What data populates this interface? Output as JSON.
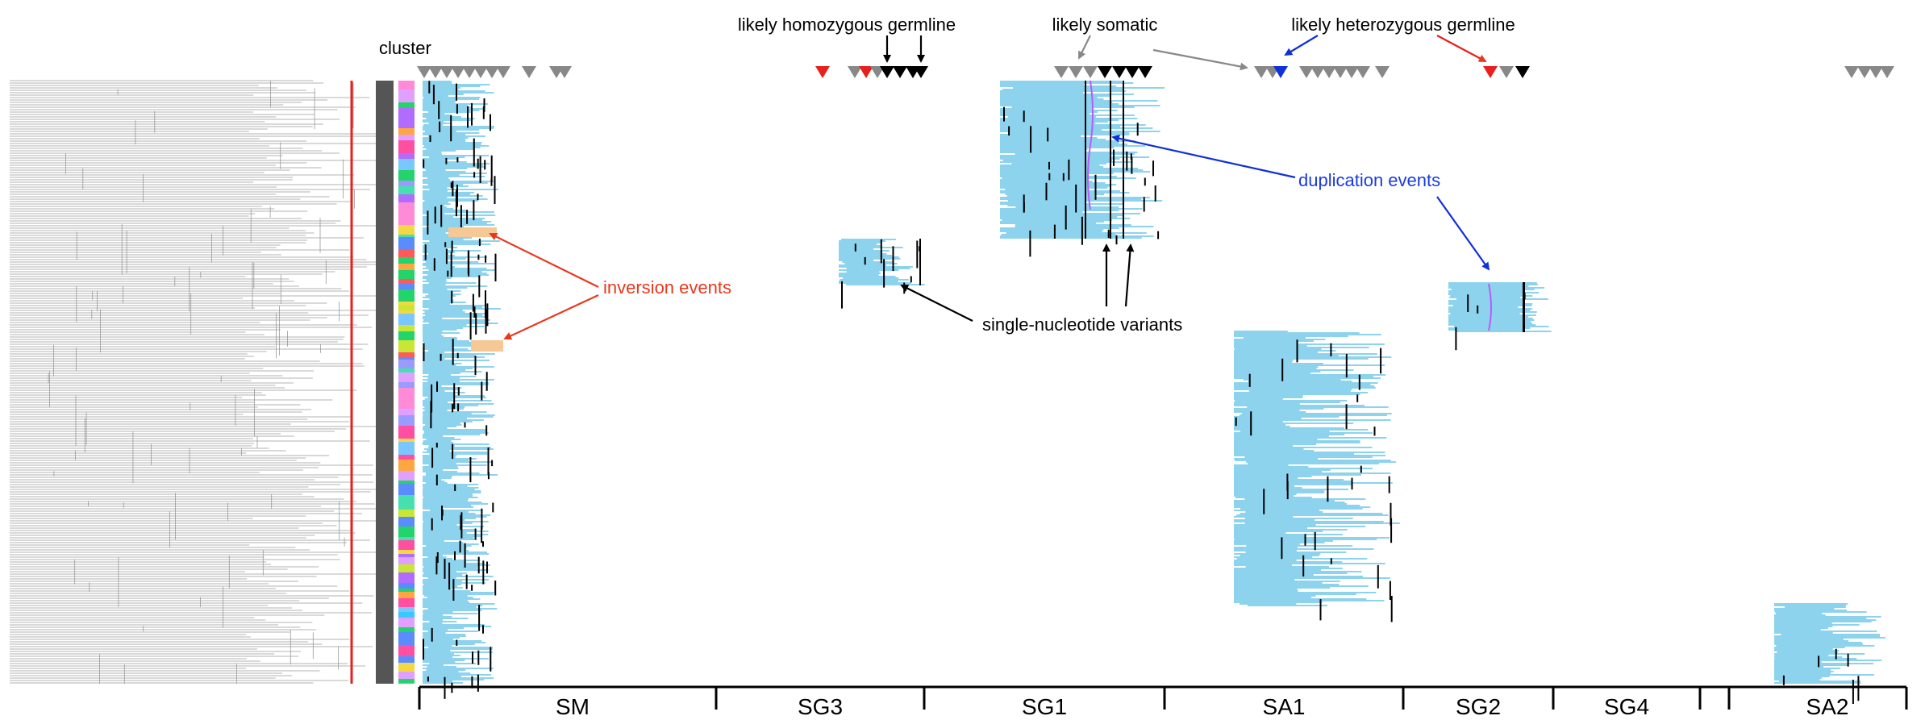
{
  "chart_data": {
    "type": "heatmap",
    "title": "",
    "cluster_label": "cluster",
    "segments": [
      "SM",
      "SG3",
      "SG1",
      "SA1",
      "SG2",
      "SG4",
      "SA2"
    ],
    "annotations": [
      {
        "text": "likely homozygous germline",
        "color": "#000000"
      },
      {
        "text": "likely somatic",
        "color": "#000000"
      },
      {
        "text": "likely heterozygous germline",
        "color": "#000000"
      },
      {
        "text": "duplication events",
        "color": "#1a3cdc"
      },
      {
        "text": "inversion events",
        "color": "#e8391d"
      },
      {
        "text": "single-nucleotide variants",
        "color": "#000000"
      }
    ],
    "colors": {
      "read": "#8dd3ee",
      "snv": "#000000",
      "marker_gray": "#888888",
      "marker_red": "#e8201d",
      "marker_blue": "#1030d8",
      "cut_line": "#e8201d",
      "dendrogram": "#777777"
    }
  }
}
